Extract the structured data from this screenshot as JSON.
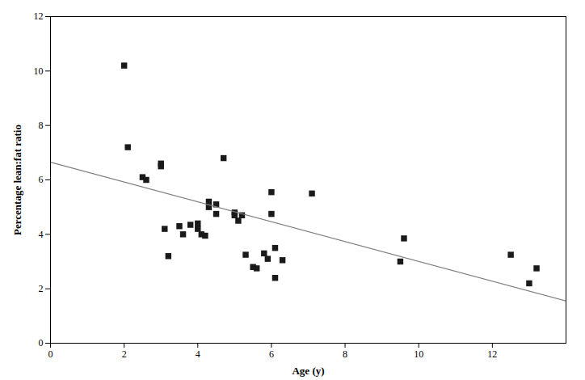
{
  "chart_data": {
    "type": "scatter",
    "xlabel": "Age (y)",
    "ylabel": "Percentage lean:fat ratio",
    "series": [
      {
        "type": "scatter",
        "color": "#1a1a1a",
        "marker": "square",
        "x": [
          2.0,
          2.1,
          2.5,
          2.6,
          3.0,
          3.0,
          3.1,
          3.2,
          3.5,
          3.6,
          3.8,
          4.0,
          4.0,
          4.1,
          4.2,
          4.3,
          4.3,
          4.5,
          4.5,
          4.7,
          5.0,
          5.0,
          5.1,
          5.2,
          5.3,
          5.5,
          5.6,
          5.8,
          5.9,
          6.0,
          6.0,
          6.1,
          6.1,
          6.3,
          7.1,
          9.5,
          9.6,
          12.5,
          13.0,
          13.2
        ],
        "values": [
          10.2,
          7.2,
          6.1,
          6.0,
          6.5,
          6.6,
          4.2,
          3.2,
          4.3,
          4.0,
          4.35,
          4.4,
          4.2,
          4.0,
          3.95,
          5.0,
          5.2,
          5.1,
          4.75,
          6.8,
          4.8,
          4.7,
          4.5,
          4.7,
          3.25,
          2.8,
          2.75,
          3.3,
          3.1,
          5.55,
          4.75,
          3.5,
          2.4,
          3.05,
          5.5,
          3.0,
          3.85,
          3.25,
          2.2,
          2.75
        ]
      },
      {
        "type": "line",
        "color": "#808080",
        "line_style": "solid",
        "x": [
          0,
          14
        ],
        "values": [
          6.65,
          1.55
        ]
      }
    ],
    "xlim": [
      0,
      14
    ],
    "ylim": [
      0,
      12
    ],
    "xticks": [
      0,
      2,
      4,
      6,
      8,
      10,
      12
    ],
    "yticks": [
      0,
      2,
      4,
      6,
      8,
      10,
      12
    ],
    "grid": false
  }
}
